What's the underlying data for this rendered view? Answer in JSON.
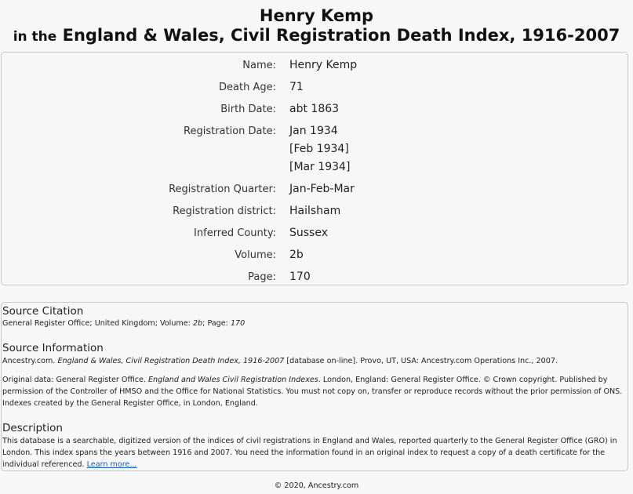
{
  "header": {
    "name": "Henry Kemp",
    "in_the": "in the",
    "database_title": "England & Wales, Civil Registration Death Index, 1916-2007"
  },
  "record": {
    "fields": [
      {
        "label": "Name:",
        "values": [
          "Henry Kemp"
        ]
      },
      {
        "label": "Death Age:",
        "values": [
          "71"
        ]
      },
      {
        "label": "Birth Date:",
        "values": [
          "abt 1863"
        ]
      },
      {
        "label": "Registration Date:",
        "values": [
          "Jan 1934",
          "[Feb 1934]",
          "[Mar 1934]"
        ]
      },
      {
        "label": "Registration Quarter:",
        "values": [
          "Jan-Feb-Mar"
        ]
      },
      {
        "label": "Registration district:",
        "values": [
          "Hailsham"
        ]
      },
      {
        "label": "Inferred County:",
        "values": [
          "Sussex"
        ]
      },
      {
        "label": "Volume:",
        "values": [
          "2b"
        ]
      },
      {
        "label": "Page:",
        "values": [
          "170"
        ]
      }
    ]
  },
  "source_citation": {
    "heading": "Source Citation",
    "text_a": "General Register Office; United Kingdom; Volume: ",
    "volume": "2b",
    "text_b": "; Page: ",
    "page": "170"
  },
  "source_information": {
    "heading": "Source Information",
    "p1_a": "Ancestry.com. ",
    "p1_title": "England & Wales, Civil Registration Death Index, 1916-2007",
    "p1_b": " [database on-line]. Provo, UT, USA: Ancestry.com Operations Inc., 2007.",
    "p2_a": "Original data: General Register Office. ",
    "p2_title": "England and Wales Civil Registration Indexes",
    "p2_b": ". London, England: General Register Office. © Crown copyright. Published by permission of the Controller of HMSO and the Office for National Statistics. You must not copy on, transfer or reproduce records without the prior permission of ONS. Indexes created by the General Register Office, in London, England."
  },
  "description": {
    "heading": "Description",
    "text": "This database is a searchable, digitized version of the indices of civil registrations in England and Wales, reported quarterly to the General Register Office (GRO) in London. This index spans the years between 1916 and 2007. You need the information found in an original index to request a copy of a death certificate for the individual referenced. ",
    "learn_more": "Learn more..."
  },
  "footer": {
    "copyright": "© 2020, Ancestry.com"
  }
}
